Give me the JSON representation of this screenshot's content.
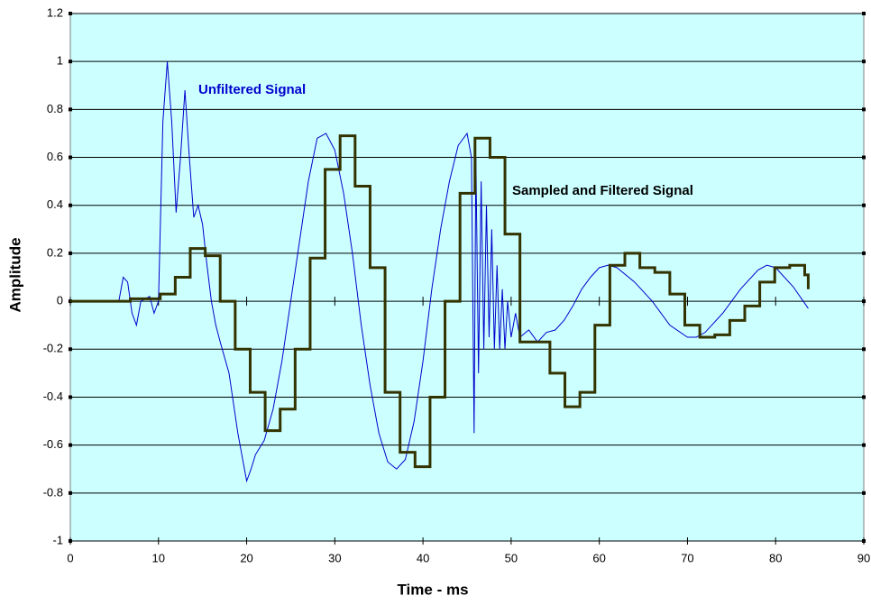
{
  "chart_data": {
    "type": "line",
    "xlabel": "Time - ms",
    "ylabel": "Amplitude",
    "xlim": [
      0,
      90
    ],
    "xticks": [
      0,
      10,
      20,
      30,
      40,
      50,
      60,
      70,
      80,
      90
    ],
    "ylim": [
      -1,
      1.2
    ],
    "yticks": [
      -1,
      -0.8,
      -0.6,
      -0.4,
      -0.2,
      0,
      0.2,
      0.4,
      0.6,
      0.8,
      1,
      1.2
    ],
    "grid": true,
    "background": "#ccffff",
    "series": [
      {
        "name": "Unfiltered Signal",
        "color": "#0000cc",
        "width": 1,
        "drawstyle": "default",
        "x": [
          0,
          5.5,
          6,
          6.5,
          7,
          7.5,
          8,
          9,
          9.5,
          10,
          10.5,
          11,
          11.5,
          12,
          12.5,
          13,
          13.5,
          14,
          14.5,
          15,
          15.5,
          16,
          16.5,
          17,
          18,
          19,
          19.5,
          20,
          20.5,
          21,
          22,
          23,
          24,
          25,
          26,
          27,
          28,
          29,
          30,
          31,
          32,
          33,
          34,
          35,
          36,
          37,
          38,
          39,
          40,
          41,
          42,
          43,
          44,
          45,
          45.5,
          45.8,
          46,
          46.3,
          46.6,
          46.9,
          47.2,
          47.5,
          47.8,
          48.1,
          48.4,
          48.7,
          49,
          49.3,
          49.6,
          50,
          50.5,
          51,
          52,
          53,
          54,
          55,
          56,
          57,
          58,
          59,
          60,
          61,
          62,
          64,
          66,
          68,
          70,
          71,
          72,
          74,
          76,
          78,
          79,
          80,
          82,
          83.7
        ],
        "values": [
          0,
          0,
          0.1,
          0.08,
          -0.05,
          -0.1,
          0,
          0.02,
          -0.05,
          0,
          0.75,
          1,
          0.75,
          0.37,
          0.6,
          0.88,
          0.6,
          0.35,
          0.4,
          0.32,
          0.15,
          0,
          -0.1,
          -0.17,
          -0.3,
          -0.55,
          -0.65,
          -0.75,
          -0.7,
          -0.64,
          -0.58,
          -0.45,
          -0.25,
          0,
          0.25,
          0.5,
          0.68,
          0.7,
          0.63,
          0.45,
          0.2,
          -0.1,
          -0.35,
          -0.55,
          -0.67,
          -0.7,
          -0.66,
          -0.5,
          -0.25,
          0.05,
          0.3,
          0.5,
          0.65,
          0.7,
          0.6,
          -0.55,
          0.6,
          -0.3,
          0.5,
          -0.2,
          0.4,
          -0.15,
          0.3,
          -0.2,
          0.15,
          -0.2,
          0.05,
          -0.2,
          0,
          -0.15,
          -0.05,
          -0.15,
          -0.12,
          -0.17,
          -0.13,
          -0.12,
          -0.08,
          -0.02,
          0.05,
          0.1,
          0.14,
          0.15,
          0.14,
          0.08,
          0,
          -0.1,
          -0.15,
          -0.15,
          -0.13,
          -0.05,
          0.05,
          0.13,
          0.15,
          0.14,
          0.06,
          -0.03
        ]
      },
      {
        "name": "Sampled and Filtered Signal",
        "color": "#333300",
        "width": 3,
        "drawstyle": "steps-post",
        "x": [
          0,
          1.7,
          3.4,
          5.1,
          6.8,
          8.5,
          10.2,
          11.9,
          13.6,
          15.3,
          17,
          18.7,
          20.4,
          22.1,
          23.8,
          25.5,
          27.2,
          28.9,
          30.6,
          32.3,
          34,
          35.7,
          37.4,
          39.1,
          40.8,
          42.5,
          44.2,
          45.9,
          47.6,
          49.3,
          51,
          52.7,
          54.4,
          56.1,
          57.8,
          59.5,
          61.2,
          62.9,
          64.6,
          66.3,
          68,
          69.7,
          71.4,
          73.1,
          74.8,
          76.5,
          78.2,
          79.9,
          81.6,
          83.3,
          83.7
        ],
        "values": [
          0,
          0,
          0,
          0,
          0.01,
          0.01,
          0.03,
          0.1,
          0.22,
          0.19,
          0,
          -0.2,
          -0.38,
          -0.54,
          -0.45,
          -0.2,
          0.18,
          0.55,
          0.69,
          0.48,
          0.14,
          -0.38,
          -0.63,
          -0.69,
          -0.4,
          0,
          0.45,
          0.68,
          0.6,
          0.28,
          -0.17,
          -0.17,
          -0.3,
          -0.44,
          -0.38,
          -0.1,
          0.15,
          0.2,
          0.14,
          0.12,
          0.03,
          -0.1,
          -0.15,
          -0.14,
          -0.08,
          -0.02,
          0.08,
          0.14,
          0.15,
          0.11,
          0.05
        ]
      }
    ]
  }
}
